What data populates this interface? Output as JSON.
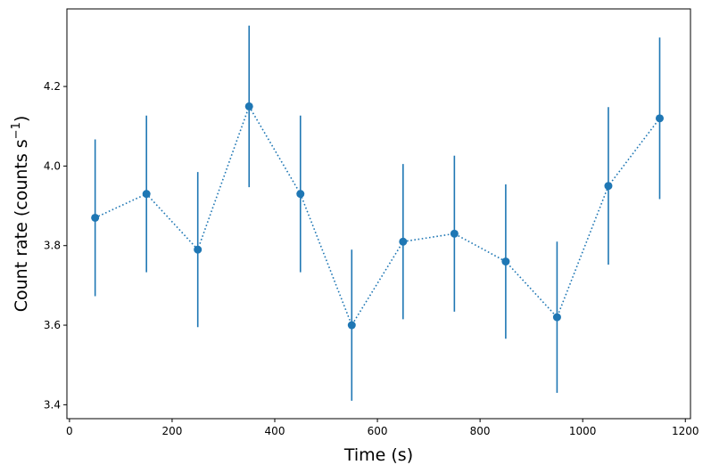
{
  "chart_data": {
    "type": "scatter",
    "title": "",
    "xlabel": "Time (s)",
    "ylabel_main": "Count rate (counts s",
    "ylabel_sup": "−1",
    "ylabel_close": ")",
    "xlim": [
      -5,
      1210
    ],
    "ylim": [
      3.365,
      4.395
    ],
    "xticks": [
      0,
      200,
      400,
      600,
      800,
      1000,
      1200
    ],
    "xtick_labels": [
      "0",
      "200",
      "400",
      "600",
      "800",
      "1000",
      "1200"
    ],
    "yticks": [
      3.4,
      3.6,
      3.8,
      4.0,
      4.2
    ],
    "ytick_labels": [
      "3.4",
      "3.6",
      "3.8",
      "4.0",
      "4.2"
    ],
    "grid": false,
    "series": [
      {
        "color": "#1f77b4",
        "linestyle": "dotted",
        "marker": "circle",
        "x": [
          50,
          150,
          250,
          350,
          450,
          550,
          650,
          750,
          850,
          950,
          1050,
          1150
        ],
        "y": [
          3.87,
          3.93,
          3.79,
          4.15,
          3.93,
          3.6,
          3.81,
          3.83,
          3.76,
          3.62,
          3.95,
          4.12
        ],
        "yerr": [
          0.197,
          0.197,
          0.195,
          0.203,
          0.197,
          0.19,
          0.195,
          0.196,
          0.194,
          0.19,
          0.198,
          0.203
        ]
      }
    ]
  }
}
